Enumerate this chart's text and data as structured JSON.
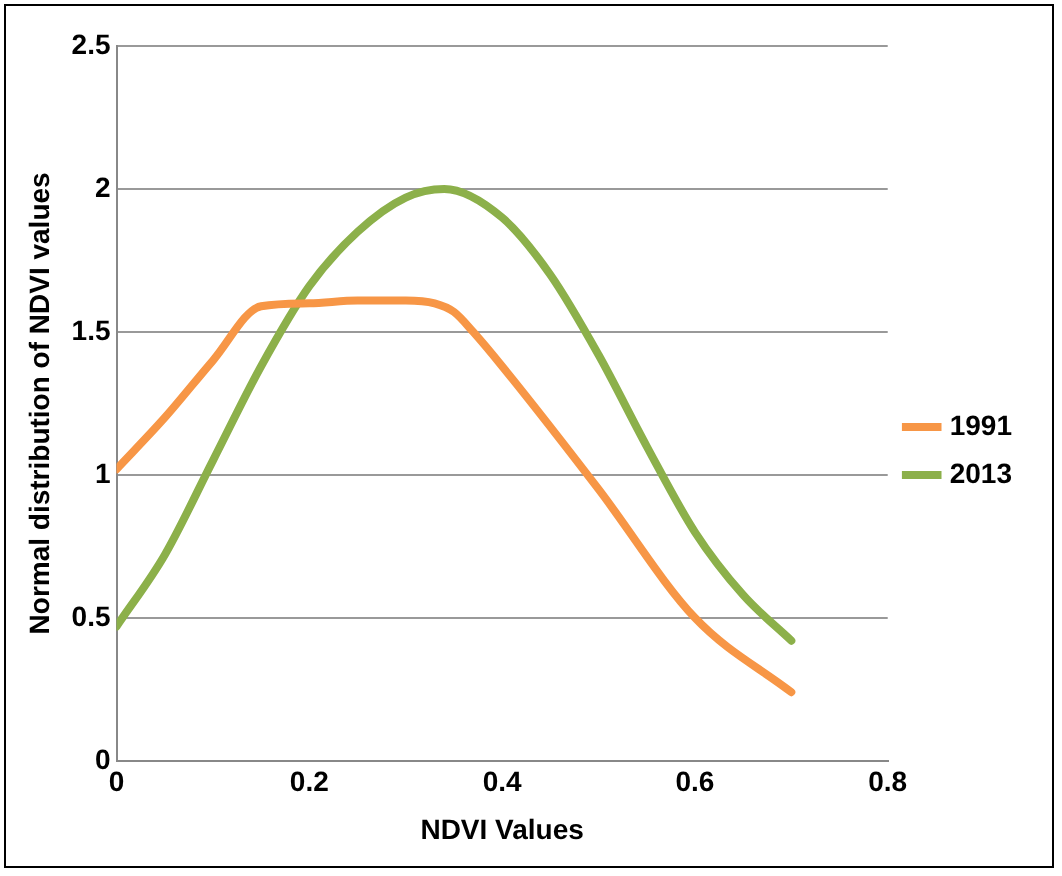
{
  "chart_data": {
    "type": "line",
    "xlabel": "NDVI Values",
    "ylabel": "Normal distribution of NDVI values",
    "xlim": [
      0,
      0.8
    ],
    "xticks": [
      0,
      0.2,
      0.4,
      0.6,
      0.8
    ],
    "ylim": [
      0,
      2.5
    ],
    "yticks": [
      0,
      0.5,
      1,
      1.5,
      2,
      2.5
    ],
    "grid": "y",
    "legend": "right",
    "marker": "none",
    "line_style": "solid",
    "series": [
      {
        "name": "1991",
        "color": "#f79646",
        "x": [
          0,
          0.05,
          0.1,
          0.15,
          0.2,
          0.25,
          0.3,
          0.33,
          0.35,
          0.37,
          0.4,
          0.5,
          0.6,
          0.7
        ],
        "values": [
          1.02,
          1.2,
          1.4,
          1.59,
          1.6,
          1.61,
          1.61,
          1.6,
          1.57,
          1.5,
          1.38,
          0.95,
          0.5,
          0.24
        ]
      },
      {
        "name": "2013",
        "color": "#8cb04a",
        "x": [
          0,
          0.05,
          0.1,
          0.15,
          0.2,
          0.25,
          0.3,
          0.34,
          0.4,
          0.45,
          0.5,
          0.55,
          0.6,
          0.65,
          0.7
        ],
        "values": [
          0.47,
          0.72,
          1.05,
          1.38,
          1.66,
          1.85,
          1.97,
          2.0,
          1.9,
          1.7,
          1.42,
          1.1,
          0.8,
          0.58,
          0.42
        ]
      }
    ]
  }
}
